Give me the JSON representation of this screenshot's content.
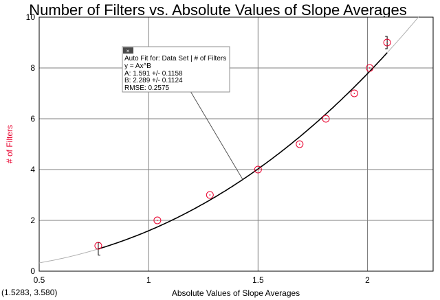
{
  "colors": {
    "data_points": "#e8002d",
    "ylabel": "#e8002d",
    "fit_line": "#000000",
    "grid": "#7f7f7f",
    "extrapolation": "#b0b0b0"
  },
  "chart_data": {
    "type": "scatter",
    "title": "Number of Filters vs. Absolute Values of Slope Averages",
    "xlabel": "Absolute Values of Slope Averages",
    "ylabel": "# of Filters",
    "xlim": [
      0.5,
      2.3
    ],
    "ylim": [
      0,
      10
    ],
    "x_ticks": [
      0.5,
      1,
      1.5,
      2
    ],
    "x_tick_labels": [
      "0.5",
      "1",
      "1.5",
      "2"
    ],
    "y_ticks": [
      0,
      2,
      4,
      6,
      8,
      10
    ],
    "y_tick_labels": [
      "0",
      "2",
      "4",
      "6",
      "8",
      "10"
    ],
    "grid": true,
    "series": [
      {
        "name": "# of Filters",
        "x": [
          0.77,
          1.04,
          1.28,
          1.5,
          1.69,
          1.81,
          1.94,
          2.01,
          2.09
        ],
        "y": [
          1,
          2,
          3,
          4,
          5,
          6,
          7,
          8,
          9
        ]
      }
    ],
    "fit": {
      "model": "power",
      "A": 1.591,
      "B": 2.289,
      "range": [
        0.77,
        2.09
      ],
      "annotation_lines": [
        "Auto Fit for: Data Set | # of Filters",
        "y = Ax^B",
        "A: 1.591 +/- 0.1158",
        "B: 2.289 +/- 0.1124",
        "RMSE: 0.2575"
      ],
      "pointer_at_x": 1.43
    },
    "coordinate_readout": "(1.5283, 3.580)"
  }
}
